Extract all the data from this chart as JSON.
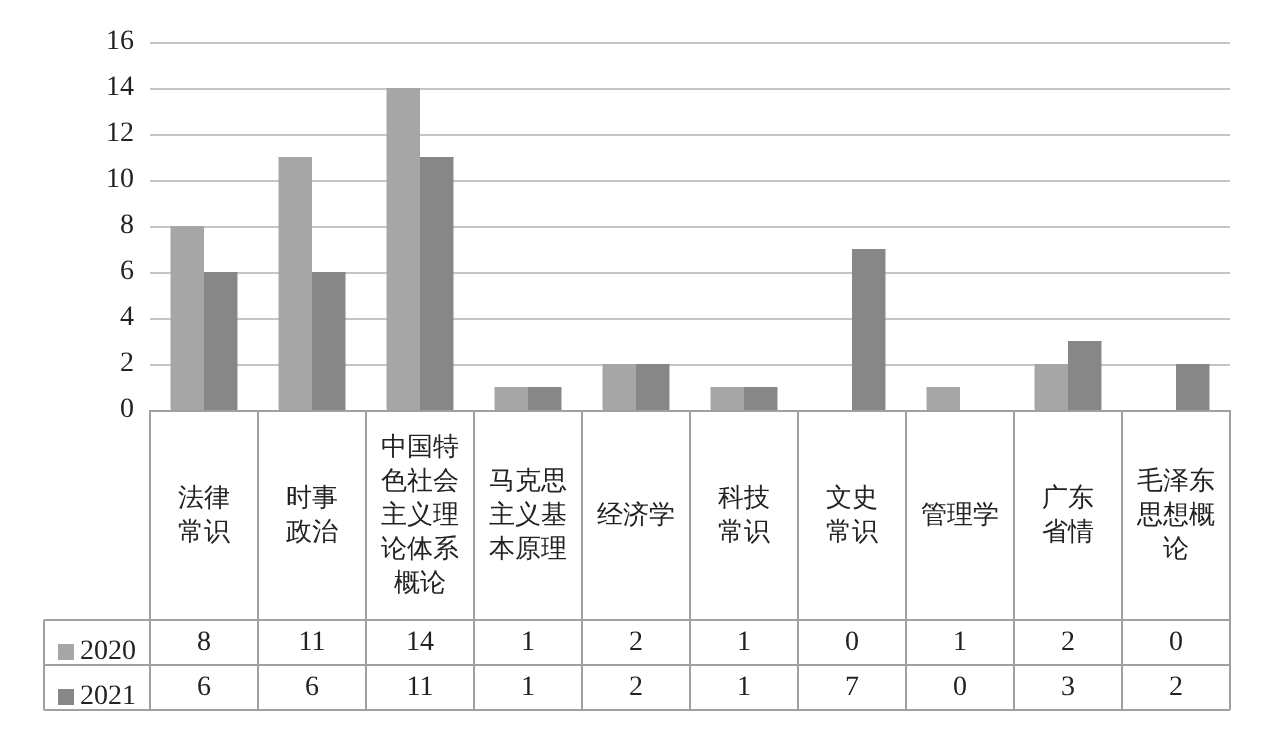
{
  "chart_data": {
    "type": "bar",
    "categories": [
      "法律常识",
      "时事政治",
      "中国特色社会主义理论体系概论",
      "马克思主义基本原理",
      "经济学",
      "科技常识",
      "文史常识",
      "管理学",
      "广东省情",
      "毛泽东思想概论"
    ],
    "series": [
      {
        "name": "2020",
        "color": "#a6a6a6",
        "values": [
          8,
          11,
          14,
          1,
          2,
          1,
          0,
          1,
          2,
          0
        ]
      },
      {
        "name": "2021",
        "color": "#878787",
        "values": [
          6,
          6,
          11,
          1,
          2,
          1,
          7,
          0,
          3,
          2
        ]
      }
    ],
    "ylim": [
      0,
      16
    ],
    "yticks": [
      0,
      2,
      4,
      6,
      8,
      10,
      12,
      14,
      16
    ],
    "grid": true,
    "legend": "bottom",
    "data_labels": true
  }
}
